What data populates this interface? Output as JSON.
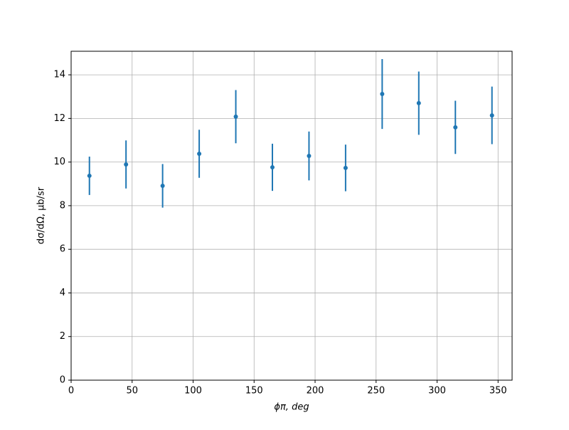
{
  "chart_data": {
    "type": "errorbar",
    "xlabel": "ϕπ, deg",
    "ylabel": "dσ/dΩ, μb/sr",
    "series": [
      {
        "color": "#1f77b4",
        "x": [
          15,
          45,
          75,
          105,
          135,
          165,
          195,
          225,
          255,
          285,
          315,
          345
        ],
        "values": [
          9.37,
          9.89,
          8.91,
          10.38,
          12.08,
          9.76,
          10.28,
          9.73,
          13.12,
          12.7,
          11.59,
          12.14
        ],
        "errors": [
          0.88,
          1.1,
          1.0,
          1.1,
          1.22,
          1.08,
          1.12,
          1.07,
          1.6,
          1.45,
          1.22,
          1.32
        ]
      }
    ],
    "xlim": [
      0,
      361.5
    ],
    "ylim": [
      0,
      15.08
    ],
    "xticks": [
      0,
      50,
      100,
      150,
      200,
      250,
      300,
      350
    ],
    "yticks": [
      0,
      2,
      4,
      6,
      8,
      10,
      12,
      14
    ],
    "grid": true
  }
}
